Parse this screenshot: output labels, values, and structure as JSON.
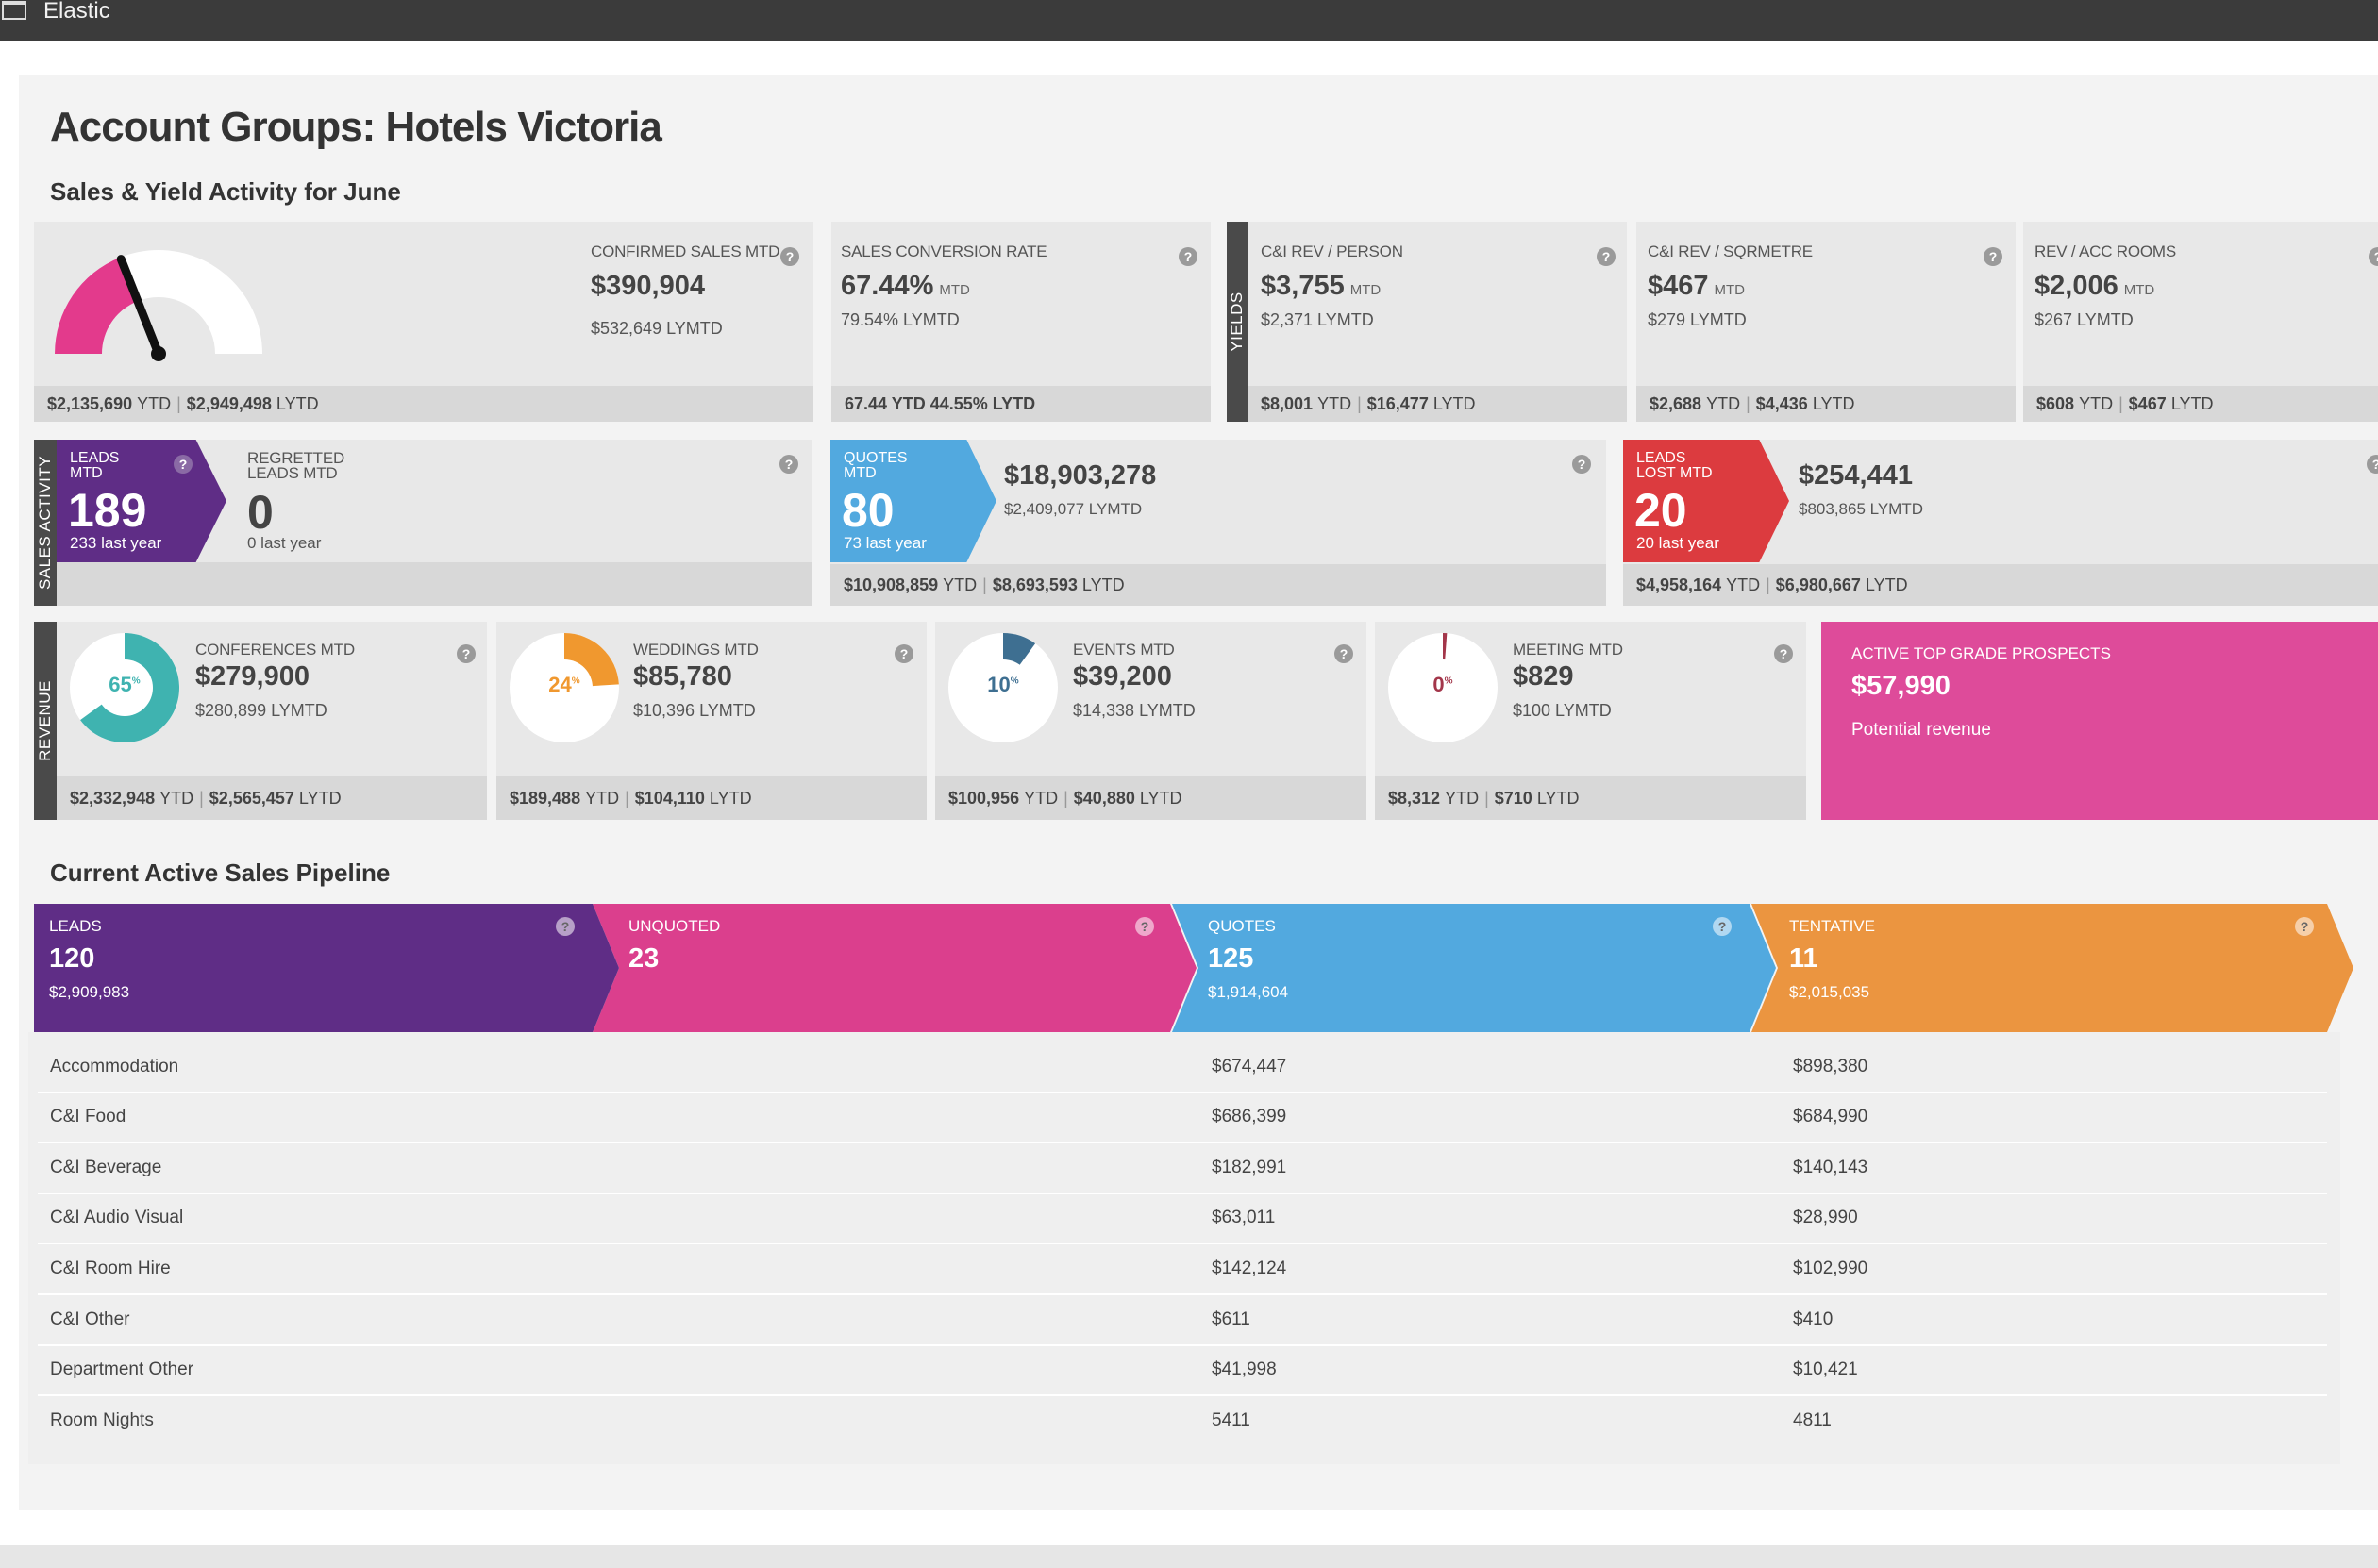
{
  "window": {
    "app_title": "Elastic"
  },
  "page": {
    "title": "Account Groups: Hotels Victoria",
    "subtitle": "Sales & Yield Activity for June",
    "pipeline_title": "Current Active Sales Pipeline"
  },
  "row1": {
    "confirmed_sales": {
      "label": "CONFIRMED SALES MTD",
      "value": "$390,904",
      "sub": "$532,649 LYMTD",
      "foot_ytd": "$2,135,690",
      "foot_ytd_label": "YTD",
      "foot_lytd": "$2,949,498",
      "foot_lytd_label": "LYTD",
      "gauge_fraction": 0.38
    },
    "conversion": {
      "label": "SALES CONVERSION RATE",
      "value": "67.44%",
      "unit": "MTD",
      "sub": "79.54% LYMTD",
      "foot": "67.44 YTD 44.55% LYTD"
    },
    "yields_strip": "YIELDS",
    "ci_rev_person": {
      "label": "C&I REV / PERSON",
      "value": "$3,755",
      "unit": "MTD",
      "sub": "$2,371 LYMTD",
      "foot_ytd": "$8,001",
      "foot_lytd": "$16,477"
    },
    "ci_rev_sqm": {
      "label": "C&I REV / SQRMETRE",
      "value": "$467",
      "unit": "MTD",
      "sub": "$279 LYMTD",
      "foot_ytd": "$2,688",
      "foot_lytd": "$4,436"
    },
    "rev_acc_rooms": {
      "label": "REV / ACC ROOMS",
      "value": "$2,006",
      "unit": "MTD",
      "sub": "$267 LYMTD",
      "foot_ytd": "$608",
      "foot_lytd": "$467"
    },
    "ytd_label": "YTD",
    "lytd_label": "LYTD"
  },
  "row2": {
    "strip": "SALES ACTIVITY",
    "leads": {
      "label": "LEADS MTD",
      "value": "189",
      "sub": "233 last year",
      "color": "#5f2d86"
    },
    "regretted": {
      "label": "REGRETTED LEADS MTD",
      "value": "0",
      "sub": "0 last year"
    },
    "quotes": {
      "label": "QUOTES MTD",
      "value": "80",
      "sub": "73 last year",
      "amount": "$18,903,278",
      "amount_sub": "$2,409,077 LYMTD",
      "foot_ytd": "$10,908,859",
      "foot_lytd": "$8,693,593",
      "color": "#52a9df"
    },
    "leads_lost": {
      "label": "LEADS LOST MTD",
      "value": "20",
      "sub": "20 last year",
      "amount": "$254,441",
      "amount_sub": "$803,865 LYMTD",
      "foot_ytd": "$4,958,164",
      "foot_lytd": "$6,980,667",
      "color": "#dc3b3f"
    }
  },
  "row3": {
    "strip": "REVENUE",
    "conferences": {
      "label": "CONFERENCES MTD",
      "value": "$279,900",
      "sub": "$280,899 LYMTD",
      "pct": "65",
      "pct_value": 65,
      "foot_ytd": "$2,332,948",
      "foot_lytd": "$2,565,457",
      "color": "#3fb3b0"
    },
    "weddings": {
      "label": "WEDDINGS MTD",
      "value": "$85,780",
      "sub": "$10,396 LYMTD",
      "pct": "24",
      "pct_value": 24,
      "foot_ytd": "$189,488",
      "foot_lytd": "$104,110",
      "color": "#f0982f"
    },
    "events": {
      "label": "EVENTS MTD",
      "value": "$39,200",
      "sub": "$14,338 LYMTD",
      "pct": "10",
      "pct_value": 10,
      "foot_ytd": "$100,956",
      "foot_lytd": "$40,880",
      "color": "#3e6f91"
    },
    "meeting": {
      "label": "MEETING MTD",
      "value": "$829",
      "sub": "$100 LYMTD",
      "pct": "0",
      "pct_value": 0,
      "foot_ytd": "$8,312",
      "foot_lytd": "$710",
      "color": "#a3364a"
    },
    "pct_sign": "%",
    "prospects": {
      "label": "ACTIVE TOP GRADE PROSPECTS",
      "value": "$57,990",
      "sub": "Potential revenue"
    }
  },
  "pipeline": {
    "stages": [
      {
        "label": "LEADS",
        "count": "120",
        "amount": "$2,909,983",
        "color": "#5f2d86"
      },
      {
        "label": "UNQUOTED",
        "count": "23",
        "amount": "",
        "color": "#db3f8d"
      },
      {
        "label": "QUOTES",
        "count": "125",
        "amount": "$1,914,604",
        "color": "#52a9df"
      },
      {
        "label": "TENTATIVE",
        "count": "11",
        "amount": "$2,015,035",
        "color": "#eb9540"
      }
    ],
    "rows": [
      {
        "name": "Accommodation",
        "quotes": "$674,447",
        "tentative": "$898,380"
      },
      {
        "name": "C&I Food",
        "quotes": "$686,399",
        "tentative": "$684,990"
      },
      {
        "name": "C&I Beverage",
        "quotes": "$182,991",
        "tentative": "$140,143"
      },
      {
        "name": "C&I Audio Visual",
        "quotes": "$63,011",
        "tentative": "$28,990"
      },
      {
        "name": "C&I Room Hire",
        "quotes": "$142,124",
        "tentative": "$102,990"
      },
      {
        "name": "C&I Other",
        "quotes": "$611",
        "tentative": "$410"
      },
      {
        "name": "Department Other",
        "quotes": "$41,998",
        "tentative": "$10,421"
      },
      {
        "name": "Room Nights",
        "quotes": "5411",
        "tentative": "4811"
      }
    ]
  },
  "help_glyph": "?"
}
